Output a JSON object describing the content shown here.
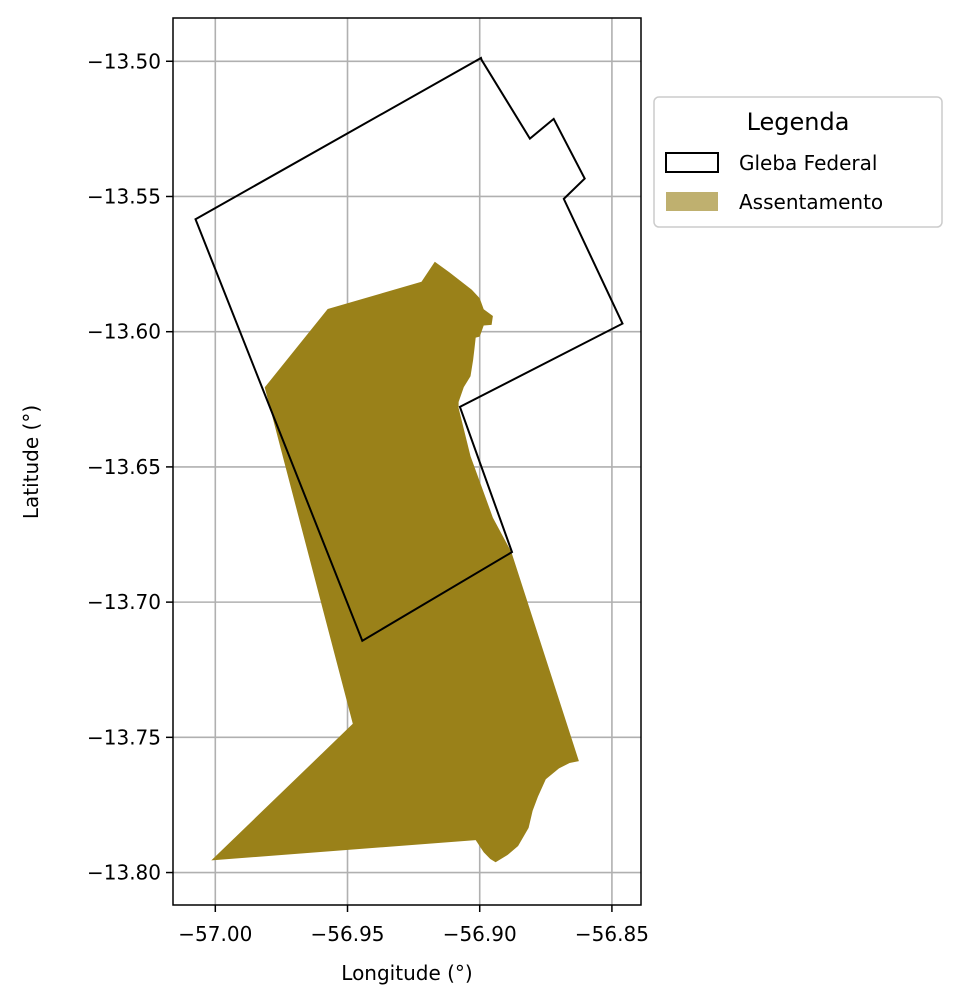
{
  "chart_data": {
    "type": "map",
    "xlabel": "Longitude (°)",
    "ylabel": "Latitude (°)",
    "xlim": [
      -57.016,
      -56.839
    ],
    "ylim": [
      -13.812,
      -13.484
    ],
    "x_ticks": [
      -57.0,
      -56.95,
      -56.9,
      -56.85
    ],
    "x_tick_labels": [
      "−57.00",
      "−56.95",
      "−56.90",
      "−56.85"
    ],
    "y_ticks": [
      -13.5,
      -13.55,
      -13.6,
      -13.65,
      -13.7,
      -13.75,
      -13.8
    ],
    "y_tick_labels": [
      "−13.50",
      "−13.55",
      "−13.60",
      "−13.65",
      "−13.70",
      "−13.75",
      "−13.80"
    ],
    "grid": true,
    "legend": {
      "title": "Legenda",
      "placement": "outside-right-top",
      "entries": [
        {
          "label": "Gleba Federal",
          "style": "outline",
          "color": "#000000"
        },
        {
          "label": "Assentamento",
          "style": "fill",
          "color": "#bfb06f"
        }
      ]
    },
    "layers": [
      {
        "name": "Gleba Federal",
        "fill": "none",
        "stroke": "#000000",
        "coordinates": [
          [
            -57.0075,
            -13.5584
          ],
          [
            -56.8995,
            -13.4988
          ],
          [
            -56.8993,
            -13.4995
          ],
          [
            -56.881,
            -13.5286
          ],
          [
            -56.872,
            -13.5213
          ],
          [
            -56.8603,
            -13.5434
          ],
          [
            -56.8682,
            -13.5509
          ],
          [
            -56.846,
            -13.597
          ],
          [
            -56.9075,
            -13.6278
          ],
          [
            -56.8878,
            -13.6815
          ],
          [
            -56.9444,
            -13.7143
          ],
          [
            -57.0075,
            -13.5584
          ]
        ]
      },
      {
        "name": "Assentamento",
        "fill": "#9a8119",
        "stroke": "none",
        "coordinates": [
          [
            -56.9813,
            -13.6206
          ],
          [
            -56.9575,
            -13.5916
          ],
          [
            -56.922,
            -13.5815
          ],
          [
            -56.917,
            -13.5741
          ],
          [
            -56.9115,
            -13.578
          ],
          [
            -56.903,
            -13.5845
          ],
          [
            -56.9,
            -13.5876
          ],
          [
            -56.8985,
            -13.5917
          ],
          [
            -56.895,
            -13.5942
          ],
          [
            -56.8955,
            -13.5975
          ],
          [
            -56.8985,
            -13.5977
          ],
          [
            -56.9,
            -13.6018
          ],
          [
            -56.9015,
            -13.6022
          ],
          [
            -56.902,
            -13.6065
          ],
          [
            -56.9025,
            -13.6105
          ],
          [
            -56.9035,
            -13.6165
          ],
          [
            -56.906,
            -13.6205
          ],
          [
            -56.908,
            -13.626
          ],
          [
            -56.908,
            -13.6282
          ],
          [
            -56.9035,
            -13.646
          ],
          [
            -56.895,
            -13.6688
          ],
          [
            -56.888,
            -13.6815
          ],
          [
            -56.8625,
            -13.7588
          ],
          [
            -56.866,
            -13.7595
          ],
          [
            -56.87,
            -13.7615
          ],
          [
            -56.875,
            -13.7655
          ],
          [
            -56.878,
            -13.772
          ],
          [
            -56.88,
            -13.7772
          ],
          [
            -56.8815,
            -13.7835
          ],
          [
            -56.8855,
            -13.7902
          ],
          [
            -56.8895,
            -13.7935
          ],
          [
            -56.894,
            -13.7962
          ],
          [
            -56.896,
            -13.795
          ],
          [
            -56.8985,
            -13.7925
          ],
          [
            -56.9015,
            -13.788
          ],
          [
            -57.0015,
            -13.7955
          ],
          [
            -56.948,
            -13.745
          ],
          [
            -56.9813,
            -13.6206
          ]
        ]
      }
    ]
  }
}
